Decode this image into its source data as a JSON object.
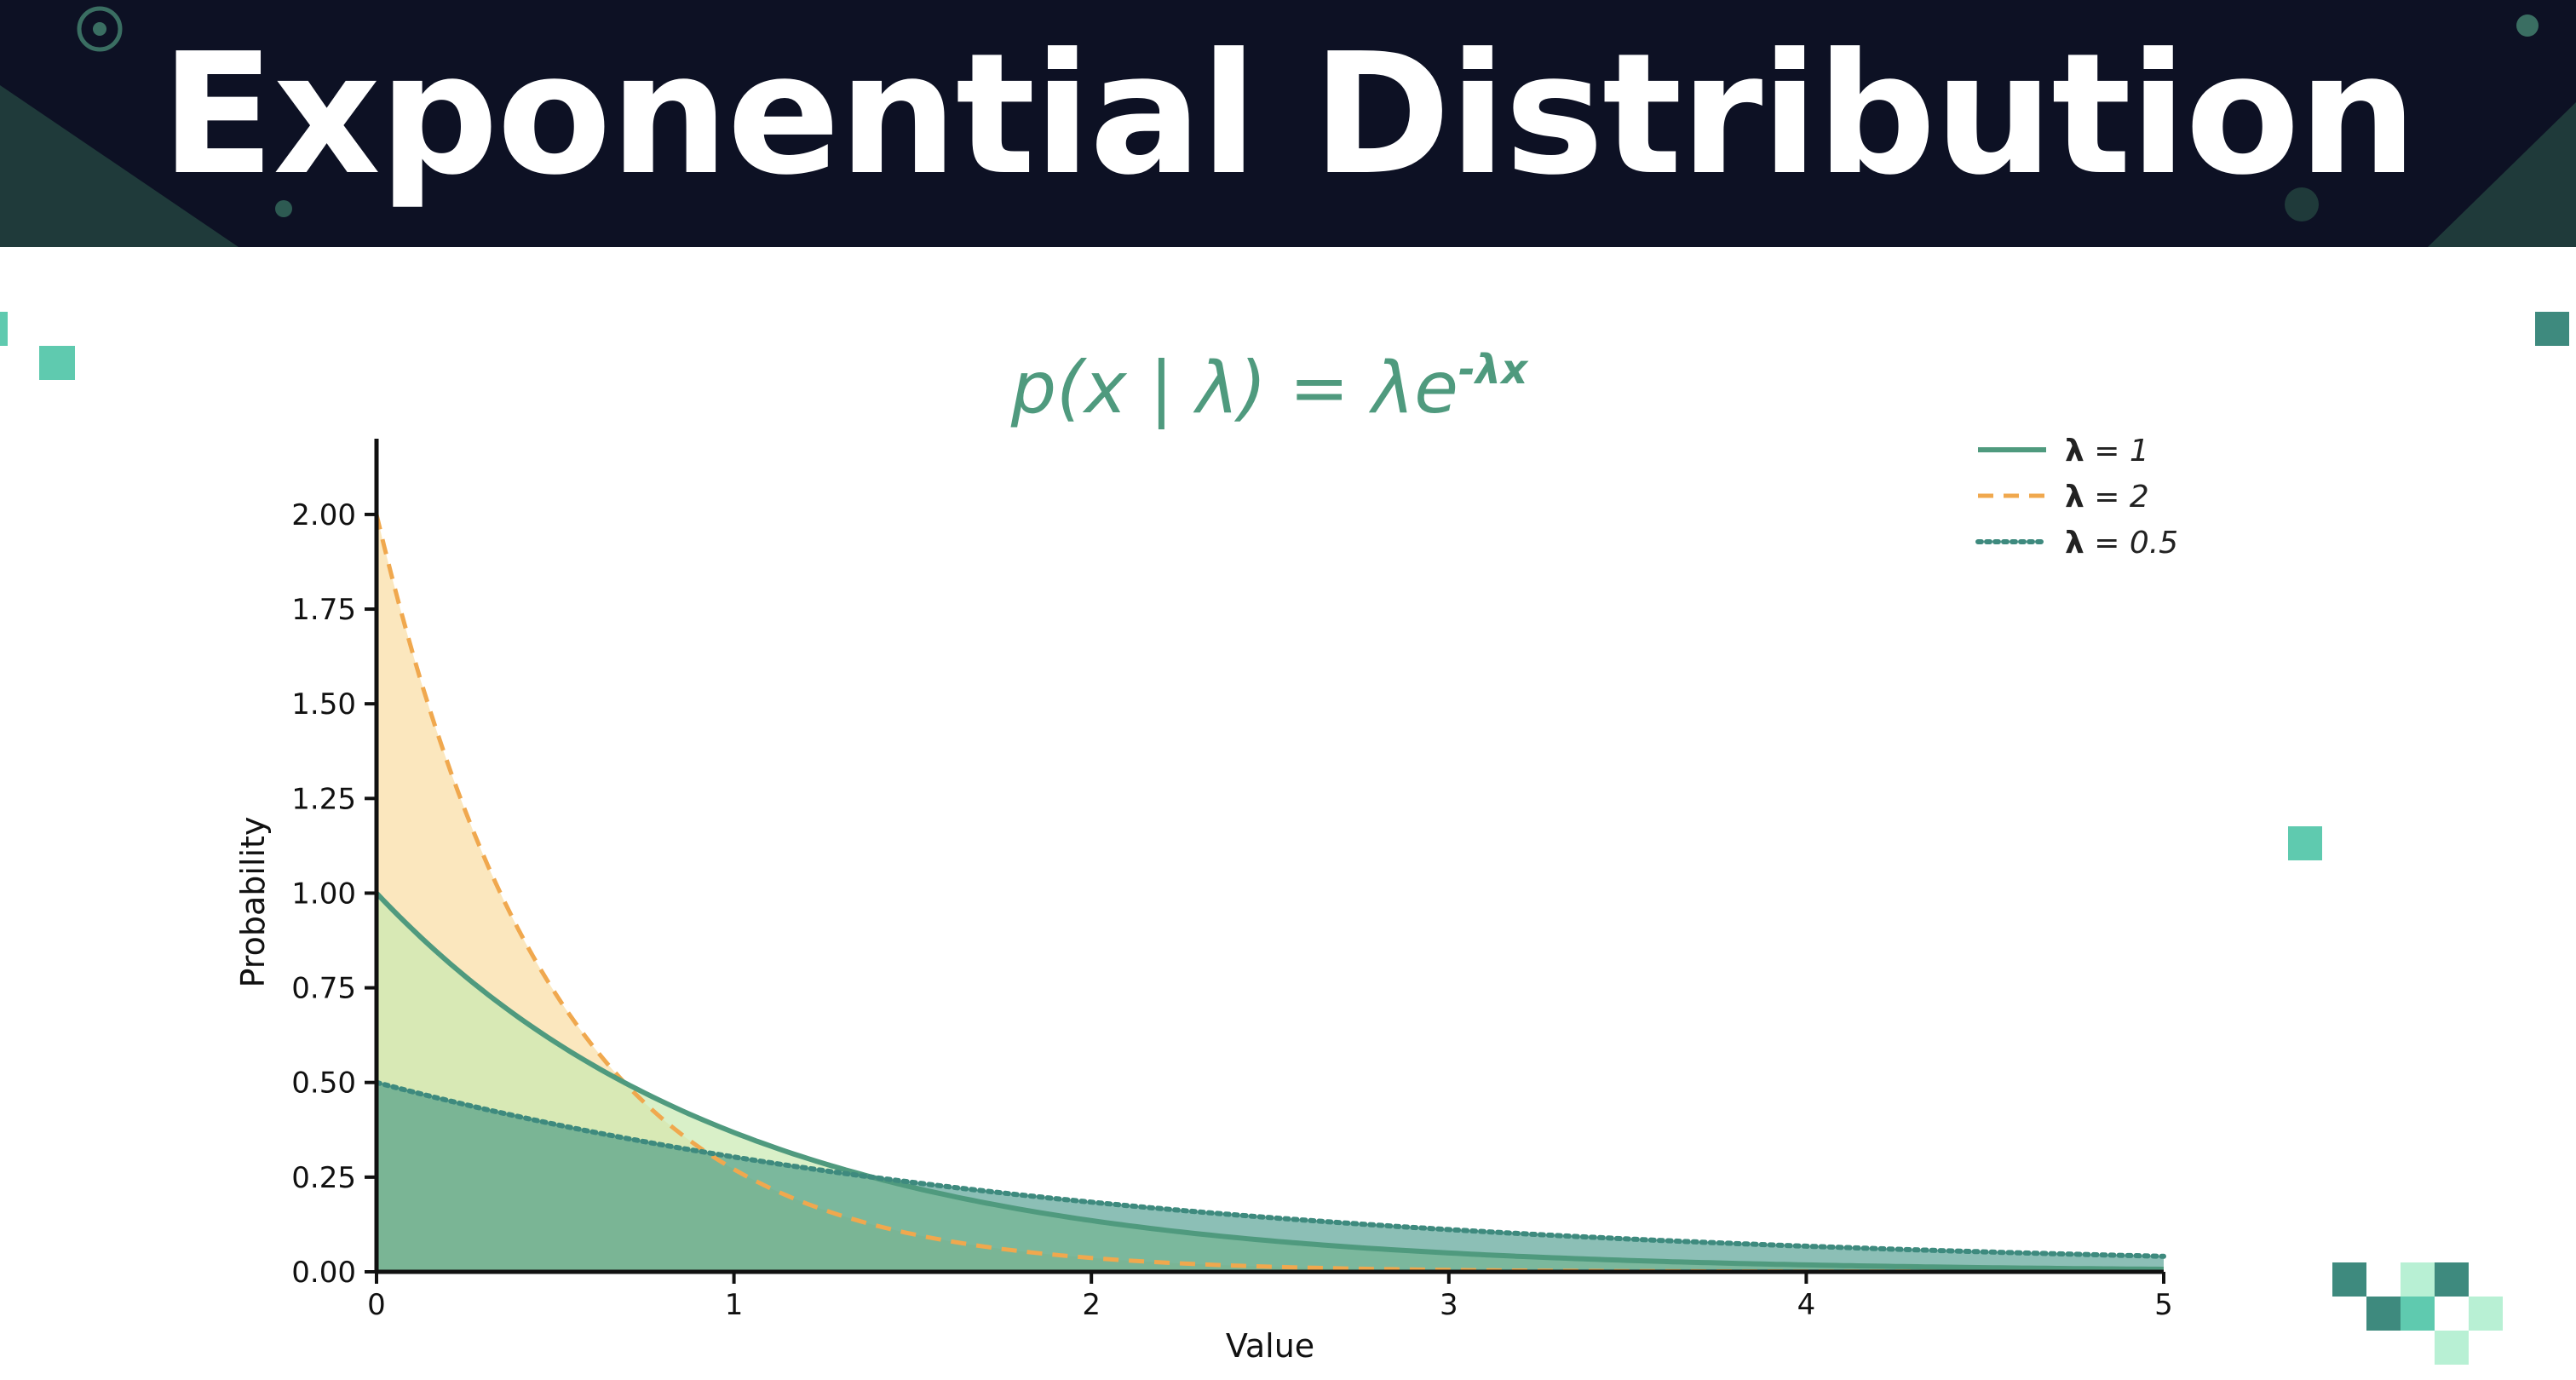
{
  "header": {
    "title": "Exponential Distribution"
  },
  "formula": {
    "lhs": "p(x | λ) = λe",
    "exponent": "-λx"
  },
  "colors": {
    "banner": "#0d1124",
    "banner_accent": "#3a6e62",
    "series_1": "#4f9a7e",
    "series_2": "#f0a84e",
    "series_3": "#3e8a7e",
    "fill_1": "#c9e9b0",
    "fill_2": "#f9dfa8",
    "fill_3": "#2d8b7a",
    "deco_teal": "#5fcaaf",
    "deco_dark": "#3e8a7e",
    "deco_light": "#b8f0d4"
  },
  "chart_data": {
    "type": "area",
    "title": "",
    "xlabel": "Value",
    "ylabel": "Probability",
    "xlim": [
      0,
      5
    ],
    "ylim": [
      0,
      2.2
    ],
    "xticks": [
      "0",
      "1",
      "2",
      "3",
      "4",
      "5"
    ],
    "yticks": [
      "0.00",
      "0.25",
      "0.50",
      "0.75",
      "1.00",
      "1.25",
      "1.50",
      "1.75",
      "2.00"
    ],
    "grid": false,
    "legend_position": "top-right",
    "series": [
      {
        "name": "λ = 1",
        "legend_symbol": "λ",
        "legend_value": "= 1",
        "lambda": 1,
        "style": "solid",
        "x": [
          0,
          0.25,
          0.5,
          0.75,
          1,
          1.5,
          2,
          2.5,
          3,
          3.5,
          4,
          4.5,
          5
        ],
        "values": [
          1.0,
          0.779,
          0.607,
          0.472,
          0.368,
          0.223,
          0.135,
          0.082,
          0.05,
          0.03,
          0.018,
          0.011,
          0.007
        ]
      },
      {
        "name": "λ = 2",
        "legend_symbol": "λ",
        "legend_value": "= 2",
        "lambda": 2,
        "style": "dashed",
        "x": [
          0,
          0.25,
          0.5,
          0.75,
          1,
          1.5,
          2,
          2.5,
          3,
          3.5,
          4,
          4.5,
          5
        ],
        "values": [
          2.0,
          1.213,
          0.736,
          0.446,
          0.271,
          0.1,
          0.037,
          0.013,
          0.005,
          0.002,
          0.001,
          0.0,
          0.0
        ]
      },
      {
        "name": "λ = 0.5",
        "legend_symbol": "λ",
        "legend_value": "= 0.5",
        "lambda": 0.5,
        "style": "dotted",
        "x": [
          0,
          0.25,
          0.5,
          0.75,
          1,
          1.5,
          2,
          2.5,
          3,
          3.5,
          4,
          4.5,
          5
        ],
        "values": [
          0.5,
          0.441,
          0.389,
          0.344,
          0.303,
          0.236,
          0.184,
          0.143,
          0.112,
          0.087,
          0.068,
          0.053,
          0.041
        ]
      }
    ]
  }
}
